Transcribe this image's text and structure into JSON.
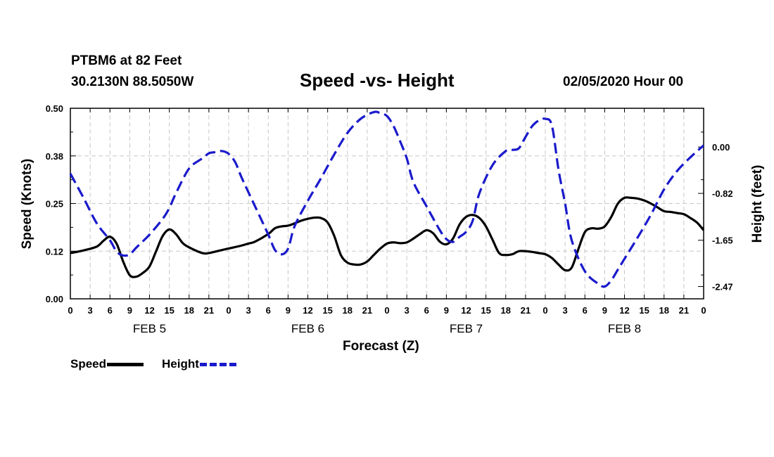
{
  "header": {
    "station": "PTBM6 at 82 Feet",
    "location": "30.2130N 88.5050W",
    "title": "Speed -vs- Height",
    "datetime": "02/05/2020 Hour 00"
  },
  "legend": {
    "speed_label": "Speed",
    "height_label": "Height"
  },
  "chart_data": {
    "type": "line",
    "title": "Speed -vs- Height",
    "xlabel": "Forecast (Z)",
    "ylabel_left": "Speed (Knots)",
    "ylabel_right": "Height (feet)",
    "x_unit": "forecast hours from 02/05/2020 00Z",
    "xlim": [
      0,
      96
    ],
    "ylim_left": [
      0,
      0.5
    ],
    "ylim_right": [
      -2.6875,
      0.6875
    ],
    "grid": true,
    "legend_position": "bottom-left",
    "x_tick_hours": [
      0,
      3,
      6,
      9,
      12,
      15,
      18,
      21,
      24,
      27,
      30,
      33,
      36,
      39,
      42,
      45,
      48,
      51,
      54,
      57,
      60,
      63,
      66,
      69,
      72,
      75,
      78,
      81,
      84,
      87,
      90,
      93,
      96
    ],
    "x_tick_labels": [
      "0",
      "3",
      "6",
      "9",
      "12",
      "15",
      "18",
      "21",
      "0",
      "3",
      "6",
      "9",
      "12",
      "15",
      "18",
      "21",
      "0",
      "3",
      "6",
      "9",
      "12",
      "15",
      "18",
      "21",
      "0",
      "3",
      "6",
      "9",
      "12",
      "15",
      "18",
      "21",
      "0"
    ],
    "day_label_hours": [
      12,
      36,
      60,
      84
    ],
    "day_labels": [
      "FEB 5",
      "FEB 6",
      "FEB 7",
      "FEB 8"
    ],
    "y_left_ticks": [
      0.0,
      0.125,
      0.25,
      0.375,
      0.5
    ],
    "y_left_tick_labels": [
      "0.00",
      "0.12",
      "0.25",
      "0.38",
      "0.50"
    ],
    "y_right_ticks": [
      0.0,
      -0.82,
      -1.65,
      -2.47
    ],
    "y_right_tick_labels": [
      "0.00",
      "-0.82",
      "-1.65",
      "-2.47"
    ],
    "series": [
      {
        "name": "Speed",
        "axis": "left",
        "color": "#000000",
        "style": "solid",
        "x": [
          0,
          2,
          4,
          5,
          6,
          7,
          8,
          9,
          10,
          11,
          12,
          13,
          14,
          15,
          16,
          17,
          18,
          20,
          21,
          22,
          24,
          26,
          27,
          28,
          30,
          31,
          32,
          33,
          34,
          35,
          36,
          37,
          38,
          39,
          40,
          41,
          42,
          43,
          44,
          45,
          46,
          47,
          48,
          49,
          50,
          51,
          52,
          53,
          54,
          55,
          56,
          57,
          58,
          59,
          60,
          61,
          62,
          63,
          64,
          65,
          66,
          67,
          68,
          69,
          70,
          71,
          72,
          73,
          74,
          75,
          76,
          77,
          78,
          79,
          80,
          81,
          82,
          83,
          84,
          85,
          86,
          87,
          88,
          89,
          90,
          91,
          92,
          93,
          94,
          95,
          96
        ],
        "values": [
          0.12,
          0.127,
          0.137,
          0.152,
          0.163,
          0.145,
          0.098,
          0.062,
          0.058,
          0.068,
          0.085,
          0.125,
          0.165,
          0.182,
          0.17,
          0.147,
          0.135,
          0.12,
          0.12,
          0.124,
          0.132,
          0.14,
          0.145,
          0.15,
          0.17,
          0.185,
          0.19,
          0.192,
          0.198,
          0.205,
          0.21,
          0.213,
          0.212,
          0.2,
          0.165,
          0.115,
          0.095,
          0.09,
          0.09,
          0.098,
          0.115,
          0.132,
          0.145,
          0.148,
          0.146,
          0.148,
          0.158,
          0.17,
          0.18,
          0.172,
          0.15,
          0.143,
          0.158,
          0.195,
          0.215,
          0.22,
          0.212,
          0.19,
          0.155,
          0.12,
          0.115,
          0.117,
          0.125,
          0.125,
          0.123,
          0.12,
          0.117,
          0.107,
          0.09,
          0.075,
          0.082,
          0.13,
          0.175,
          0.185,
          0.184,
          0.19,
          0.215,
          0.25,
          0.265,
          0.265,
          0.263,
          0.258,
          0.25,
          0.24,
          0.23,
          0.228,
          0.225,
          0.222,
          0.212,
          0.2,
          0.18
        ]
      },
      {
        "name": "Height",
        "axis": "right",
        "color": "#1a1acc",
        "style": "dashed",
        "x": [
          0,
          2,
          4,
          6,
          7,
          8,
          9,
          10,
          12,
          14,
          15,
          16,
          18,
          20,
          21,
          22,
          23,
          24,
          25,
          26,
          28,
          30,
          31,
          32,
          33,
          34,
          36,
          38,
          40,
          42,
          44,
          46,
          47,
          48,
          49,
          50,
          51,
          52,
          54,
          56,
          57,
          58,
          59,
          60,
          61,
          62,
          64,
          66,
          67,
          68,
          69,
          70,
          71,
          72,
          73,
          74,
          75,
          76,
          78,
          80,
          81,
          82,
          83,
          84,
          86,
          88,
          90,
          92,
          94,
          96
        ],
        "values": [
          -0.47,
          -0.9,
          -1.35,
          -1.65,
          -1.85,
          -1.92,
          -1.9,
          -1.78,
          -1.55,
          -1.27,
          -1.08,
          -0.82,
          -0.38,
          -0.2,
          -0.11,
          -0.09,
          -0.07,
          -0.12,
          -0.27,
          -0.55,
          -1.05,
          -1.55,
          -1.82,
          -1.9,
          -1.8,
          -1.4,
          -0.95,
          -0.55,
          -0.13,
          0.25,
          0.5,
          0.62,
          0.6,
          0.55,
          0.37,
          0.1,
          -0.2,
          -0.62,
          -1.05,
          -1.47,
          -1.63,
          -1.68,
          -1.59,
          -1.5,
          -1.3,
          -0.82,
          -0.32,
          -0.07,
          -0.05,
          -0.02,
          0.18,
          0.37,
          0.47,
          0.5,
          0.38,
          -0.4,
          -1.0,
          -1.65,
          -2.2,
          -2.42,
          -2.47,
          -2.36,
          -2.17,
          -1.98,
          -1.6,
          -1.2,
          -0.75,
          -0.42,
          -0.18,
          0.03
        ]
      }
    ]
  }
}
